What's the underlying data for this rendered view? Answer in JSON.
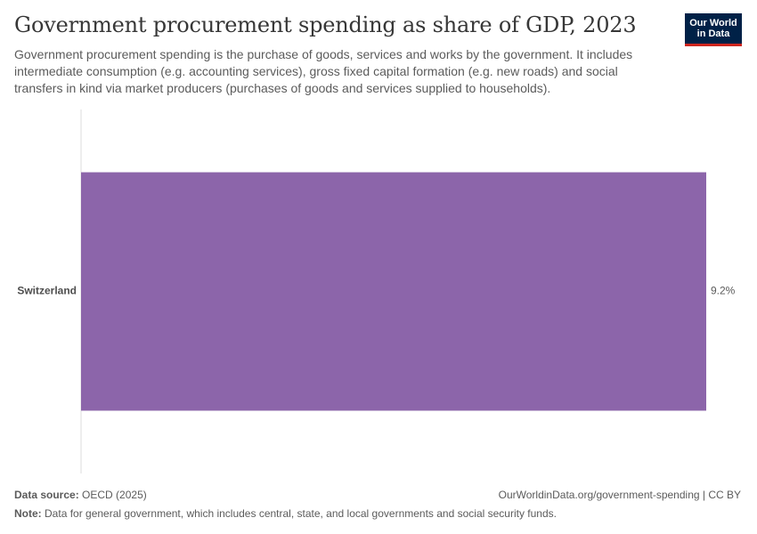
{
  "header": {
    "title": "Government procurement spending as share of GDP, 2023",
    "subtitle": "Government procurement spending is the purchase of goods, services and works by the government. It includes intermediate consumption (e.g. accounting services), gross fixed capital formation (e.g. new roads) and social transfers in kind via market producers (purchases of goods and services supplied to households).",
    "logo_line1": "Our World",
    "logo_line2": "in Data"
  },
  "footer": {
    "source_label": "Data source:",
    "source_value": "OECD (2025)",
    "url": "OurWorldinData.org/government-spending | CC BY",
    "note_label": "Note:",
    "note_value": "Data for general government, which includes central, state, and local governments and social security funds."
  },
  "colors": {
    "bar": "#8c65aa",
    "axis": "#dddddd",
    "logo_bg": "#002147",
    "logo_accent": "#ce261e"
  },
  "chart_data": {
    "type": "bar",
    "orientation": "horizontal",
    "categories": [
      "Switzerland"
    ],
    "values": [
      9.2
    ],
    "value_labels": [
      "9.2%"
    ],
    "unit": "%",
    "xlim": [
      0,
      9.2
    ]
  }
}
